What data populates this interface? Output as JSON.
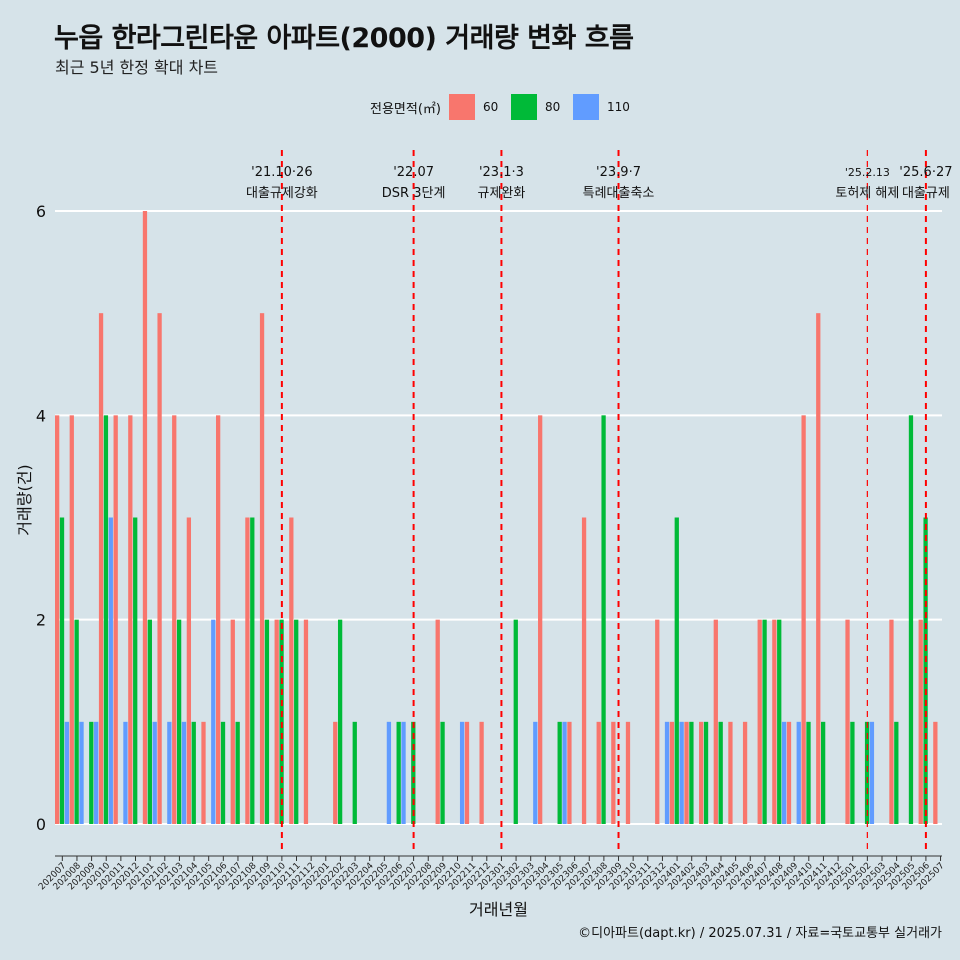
{
  "title": "누읍 한라그린타운 아파트(2000) 거래량 변화 흐름",
  "subtitle": "최근 5년 한정 확대 차트",
  "caption": "©디아파트(dapt.kr) / 2025.07.31 / 자료=국토교통부 실거래가",
  "colors": {
    "60": "#f8766d",
    "80": "#00ba38",
    "110": "#619cff",
    "vline": "#ff0000",
    "grid": "#ffffff",
    "background": "#d6e3e9"
  },
  "chart_data": {
    "type": "bar",
    "title": "누읍 한라그린타운 아파트(2000) 거래량 변화 흐름",
    "subtitle": "최근 5년 한정 확대 차트",
    "xlabel": "거래년월",
    "ylabel": "거래량(건)",
    "ylim": [
      -0.3,
      6.6
    ],
    "yticks": [
      0,
      2,
      4,
      6
    ],
    "grid": true,
    "legend": {
      "title": "전용면적(㎡)",
      "position": "top",
      "entries": [
        "60",
        "80",
        "110"
      ]
    },
    "categories": [
      "202007",
      "202008",
      "202009",
      "202010",
      "202011",
      "202012",
      "202101",
      "202102",
      "202103",
      "202104",
      "202105",
      "202106",
      "202107",
      "202108",
      "202109",
      "202110",
      "202111",
      "202112",
      "202201",
      "202202",
      "202203",
      "202204",
      "202205",
      "202206",
      "202207",
      "202208",
      "202209",
      "202210",
      "202211",
      "202212",
      "202301",
      "202302",
      "202303",
      "202304",
      "202305",
      "202306",
      "202307",
      "202308",
      "202309",
      "202310",
      "202311",
      "202312",
      "202401",
      "202402",
      "202403",
      "202404",
      "202405",
      "202406",
      "202407",
      "202408",
      "202409",
      "202410",
      "202411",
      "202412",
      "202501",
      "202502",
      "202503",
      "202504",
      "202505",
      "202506",
      "202507"
    ],
    "series": [
      {
        "name": "60",
        "values": [
          4,
          4,
          0,
          5,
          4,
          4,
          6,
          5,
          4,
          3,
          1,
          4,
          2,
          3,
          5,
          2,
          3,
          2,
          0,
          1,
          0,
          0,
          0,
          0,
          0,
          0,
          2,
          0,
          1,
          1,
          0,
          0,
          0,
          4,
          0,
          1,
          3,
          1,
          1,
          1,
          0,
          2,
          1,
          1,
          1,
          2,
          1,
          1,
          2,
          2,
          1,
          4,
          5,
          0,
          2,
          0,
          0,
          2,
          0,
          2,
          1
        ]
      },
      {
        "name": "80",
        "values": [
          3,
          2,
          1,
          4,
          0,
          3,
          2,
          0,
          2,
          1,
          0,
          1,
          1,
          3,
          2,
          2,
          2,
          0,
          0,
          2,
          1,
          0,
          0,
          1,
          1,
          0,
          1,
          0,
          0,
          0,
          0,
          2,
          0,
          0,
          1,
          0,
          0,
          4,
          0,
          0,
          0,
          0,
          3,
          1,
          1,
          1,
          0,
          0,
          2,
          2,
          0,
          1,
          1,
          0,
          1,
          1,
          0,
          1,
          4,
          3,
          0
        ]
      },
      {
        "name": "110",
        "values": [
          1,
          1,
          1,
          3,
          1,
          0,
          1,
          1,
          1,
          0,
          2,
          0,
          0,
          0,
          0,
          0,
          0,
          0,
          0,
          0,
          0,
          0,
          1,
          1,
          0,
          0,
          0,
          1,
          0,
          0,
          0,
          0,
          1,
          0,
          1,
          0,
          0,
          0,
          0,
          0,
          0,
          1,
          1,
          0,
          0,
          0,
          0,
          0,
          0,
          1,
          1,
          0,
          0,
          0,
          0,
          1,
          0,
          0,
          0,
          0,
          0
        ]
      }
    ],
    "events": [
      {
        "x": "202110",
        "line1": "'21.10·26",
        "line2": "대출규제강화"
      },
      {
        "x": "202207",
        "line1": "'22.07",
        "line2": "DSR 3단계"
      },
      {
        "x": "202301",
        "line1": "'23.1·3",
        "line2": "규제완화"
      },
      {
        "x": "202309",
        "line1": "'23.9·7",
        "line2": "특례대출축소"
      },
      {
        "x": "202502",
        "line1": "'25.2.13",
        "line2": "토허제 해제"
      },
      {
        "x": "202506",
        "line1": "'25.6·27",
        "line2": "대출규제"
      }
    ]
  }
}
